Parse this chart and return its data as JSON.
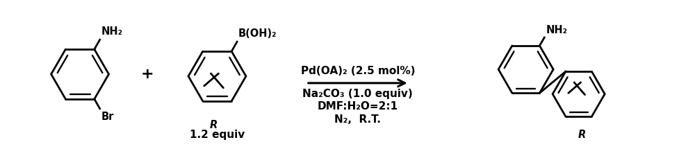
{
  "background_color": "#ffffff",
  "figsize": [
    10.0,
    2.15
  ],
  "dpi": 100,
  "reagent_line1": "Pd(OA)₂ (2.5 mol%)",
  "reagent_line2": "Na₂CO₃ (1.0 equiv)",
  "reagent_line3": "DMF:H₂O=2:1",
  "reagent_line4": "N₂,  R.T.",
  "equiv_label": "1.2 equiv",
  "line_color": "#000000",
  "line_width": 2.0,
  "font_size_reagent": 11,
  "font_size_label": 11,
  "font_size_plus": 16
}
